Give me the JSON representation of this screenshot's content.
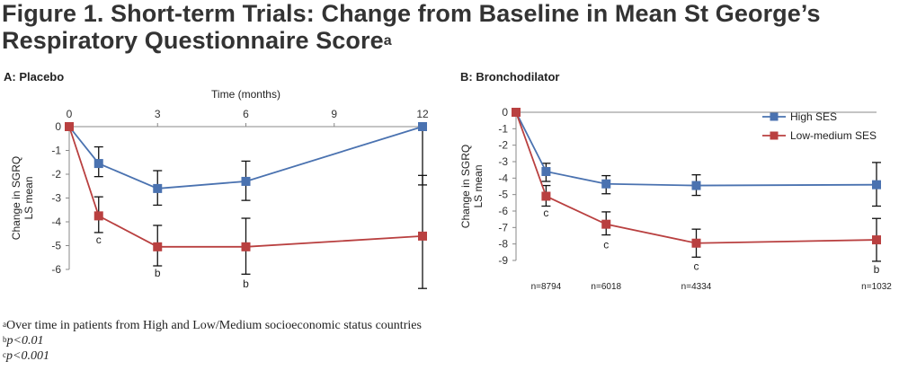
{
  "figure": {
    "title_line1": "Figure 1. Short-term Trials: Change from Baseline in Mean St George’s",
    "title_line2": "Respiratory Questionnaire Score",
    "title_superscript": "a"
  },
  "footnotes": [
    {
      "mark": "a",
      "text": "Over time in patients from High and Low/Medium socioeconomic status countries"
    },
    {
      "mark": "b",
      "text": "p<0.01"
    },
    {
      "mark": "c",
      "text": "p<0.001"
    }
  ],
  "chart_data": [
    {
      "panel_label": "A: Placebo",
      "type": "line",
      "xlabel": "Time (months)",
      "ylabel": "Change in SGRQ LS mean",
      "x_axis_position": "top",
      "xlim": [
        0,
        12
      ],
      "ylim": [
        -6,
        0
      ],
      "x_ticks": [
        "0",
        "3",
        "6",
        "9",
        "12"
      ],
      "y_ticks": [
        "0",
        "-1",
        "-2",
        "-3",
        "-4",
        "-5",
        "-6"
      ],
      "grid": false,
      "series": [
        {
          "color": "#4a72b0",
          "x": [
            0,
            1,
            3,
            6,
            12
          ],
          "y": [
            0,
            -1.55,
            -2.6,
            -2.3,
            0
          ],
          "err_low": [
            null,
            -2.1,
            -3.3,
            -3.1,
            -2.45
          ],
          "err_high": [
            null,
            -0.85,
            -1.85,
            -1.45,
            0
          ]
        },
        {
          "color": "#b94040",
          "x": [
            0,
            1,
            3,
            6,
            12
          ],
          "y": [
            0,
            -3.75,
            -5.05,
            -5.05,
            -4.6
          ],
          "err_low": [
            null,
            -4.45,
            -5.85,
            -6.2,
            -6.8
          ],
          "err_high": [
            null,
            -2.95,
            -4.15,
            -3.85,
            -2.05
          ]
        }
      ],
      "annotations": [
        {
          "text": "c",
          "x": 1,
          "y": -4.75
        },
        {
          "text": "b",
          "x": 3,
          "y": -6.15
        },
        {
          "text": "b",
          "x": 6,
          "y": -6.6
        }
      ]
    },
    {
      "panel_label": "B: Bronchodilator",
      "type": "line",
      "xlabel": "",
      "ylabel": "Change in SGRQ LS mean",
      "ylim": [
        -9,
        0
      ],
      "y_ticks": [
        "0",
        "-1",
        "-2",
        "-3",
        "-4",
        "-5",
        "-6",
        "-7",
        "-8",
        "-9"
      ],
      "grid": false,
      "legend_position": "top-right",
      "series": [
        {
          "name": "High SES",
          "color": "#4a72b0",
          "x": [
            0,
            1,
            3,
            6,
            12
          ],
          "y": [
            0,
            -3.6,
            -4.35,
            -4.45,
            -4.4
          ],
          "err_low": [
            null,
            -4.2,
            -4.95,
            -5.05,
            -5.7
          ],
          "err_high": [
            null,
            -3.1,
            -3.85,
            -3.8,
            -3.05
          ]
        },
        {
          "name": "Low-medium SES",
          "color": "#b94040",
          "x": [
            0,
            1,
            3,
            6,
            12
          ],
          "y": [
            0,
            -5.1,
            -6.8,
            -7.95,
            -7.75
          ],
          "err_low": [
            null,
            -5.7,
            -7.45,
            -8.8,
            -9.05
          ],
          "err_high": [
            null,
            -4.45,
            -6.05,
            -7.1,
            -6.45
          ]
        }
      ],
      "annotations": [
        {
          "text": "c",
          "x": 1,
          "y": -6.1
        },
        {
          "text": "c",
          "x": 3,
          "y": -8.05
        },
        {
          "text": "c",
          "x": 6,
          "y": -9.35
        },
        {
          "text": "b",
          "x": 12,
          "y": -9.55
        }
      ],
      "n_labels": [
        {
          "text": "n=8794",
          "x": 1
        },
        {
          "text": "n=6018",
          "x": 3
        },
        {
          "text": "n=4334",
          "x": 6
        },
        {
          "text": "n=1032",
          "x": 12
        }
      ]
    }
  ]
}
